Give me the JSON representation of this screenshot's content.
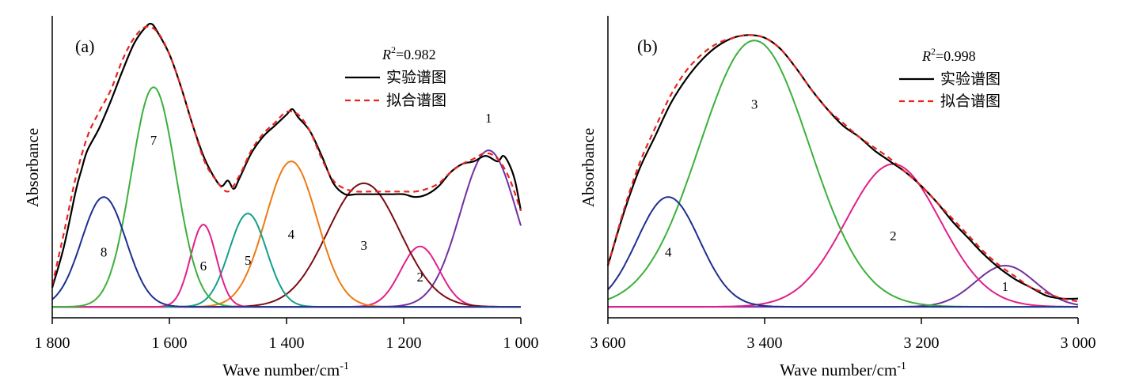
{
  "chart_data": [
    {
      "type": "line",
      "panel_label": "(a)",
      "ylabel": "Absorbance",
      "xlabel_prefix": "Wave number/cm",
      "xlabel_sup": "-1",
      "xlim": [
        1800,
        1000
      ],
      "xticks": [
        1800,
        1600,
        1400,
        1200,
        1000
      ],
      "xtick_labels": [
        "1 800",
        "1 600",
        "1 400",
        "1 200",
        "1 000"
      ],
      "ylim": [
        -0.04,
        1.06
      ],
      "r2_prefix": "R",
      "r2_sup": "2",
      "r2_value": "=0.982",
      "legend": [
        {
          "label": "实验谱图",
          "color": "#000000",
          "dash": "solid"
        },
        {
          "label": "拟合谱图",
          "color": "#e8231f",
          "dash": "dashed"
        }
      ],
      "experimental": {
        "x": [
          1800,
          1780,
          1760,
          1750,
          1740,
          1720,
          1700,
          1680,
          1660,
          1640,
          1630,
          1620,
          1600,
          1580,
          1560,
          1540,
          1520,
          1510,
          1500,
          1490,
          1480,
          1460,
          1440,
          1420,
          1400,
          1390,
          1380,
          1360,
          1340,
          1320,
          1300,
          1280,
          1260,
          1240,
          1220,
          1200,
          1180,
          1160,
          1140,
          1120,
          1100,
          1080,
          1060,
          1040,
          1030,
          1020,
          1010,
          1000
        ],
        "y": [
          0.07,
          0.22,
          0.42,
          0.5,
          0.57,
          0.65,
          0.75,
          0.86,
          0.96,
          1.02,
          1.03,
          1.0,
          0.92,
          0.8,
          0.66,
          0.54,
          0.46,
          0.44,
          0.46,
          0.43,
          0.47,
          0.56,
          0.62,
          0.66,
          0.7,
          0.72,
          0.69,
          0.64,
          0.55,
          0.45,
          0.41,
          0.41,
          0.41,
          0.41,
          0.41,
          0.41,
          0.4,
          0.41,
          0.44,
          0.49,
          0.52,
          0.53,
          0.55,
          0.53,
          0.55,
          0.52,
          0.46,
          0.35
        ]
      },
      "fitted": {
        "x": [
          1800,
          1780,
          1760,
          1740,
          1720,
          1700,
          1680,
          1660,
          1640,
          1620,
          1600,
          1580,
          1560,
          1540,
          1520,
          1500,
          1480,
          1460,
          1440,
          1420,
          1400,
          1380,
          1360,
          1340,
          1320,
          1300,
          1280,
          1260,
          1240,
          1220,
          1200,
          1180,
          1160,
          1140,
          1120,
          1100,
          1080,
          1060,
          1040,
          1020,
          1000
        ],
        "y": [
          0.08,
          0.27,
          0.47,
          0.62,
          0.71,
          0.79,
          0.9,
          0.98,
          1.02,
          1.0,
          0.92,
          0.8,
          0.66,
          0.53,
          0.46,
          0.42,
          0.48,
          0.57,
          0.63,
          0.67,
          0.71,
          0.7,
          0.64,
          0.54,
          0.46,
          0.43,
          0.42,
          0.42,
          0.42,
          0.42,
          0.42,
          0.42,
          0.43,
          0.45,
          0.49,
          0.52,
          0.54,
          0.56,
          0.54,
          0.47,
          0.35
        ]
      },
      "components": [
        {
          "label": "1",
          "center": 1055,
          "height": 0.57,
          "width": 48,
          "color": "#7030a0"
        },
        {
          "label": "2",
          "center": 1172,
          "height": 0.22,
          "width": 33,
          "color": "#e0208a"
        },
        {
          "label": "3",
          "center": 1268,
          "height": 0.45,
          "width": 62,
          "color": "#7b0c12"
        },
        {
          "label": "4",
          "center": 1392,
          "height": 0.53,
          "width": 44,
          "color": "#ec7b14"
        },
        {
          "label": "5",
          "center": 1466,
          "height": 0.34,
          "width": 32,
          "color": "#12a08a"
        },
        {
          "label": "6",
          "center": 1542,
          "height": 0.3,
          "width": 22,
          "color": "#e0208a"
        },
        {
          "label": "7",
          "center": 1627,
          "height": 0.8,
          "width": 38,
          "color": "#3cb03c"
        },
        {
          "label": "8",
          "center": 1712,
          "height": 0.4,
          "width": 38,
          "color": "#1f2f8f"
        }
      ]
    },
    {
      "type": "line",
      "panel_label": "(b)",
      "ylabel": "Absorbance",
      "xlabel_prefix": "Wave number/cm",
      "xlabel_sup": "-1",
      "xlim": [
        3600,
        3000
      ],
      "xticks": [
        3600,
        3400,
        3200,
        3000
      ],
      "xtick_labels": [
        "3 600",
        "3 400",
        "3 200",
        "3 000"
      ],
      "ylim": [
        -0.04,
        1.06
      ],
      "r2_prefix": "R",
      "r2_sup": "2",
      "r2_value": "=0.998",
      "legend": [
        {
          "label": "实验谱图",
          "color": "#000000",
          "dash": "solid"
        },
        {
          "label": "拟合谱图",
          "color": "#e8231f",
          "dash": "dashed"
        }
      ],
      "experimental": {
        "x": [
          3600,
          3580,
          3560,
          3540,
          3520,
          3500,
          3480,
          3460,
          3440,
          3420,
          3400,
          3380,
          3360,
          3340,
          3320,
          3300,
          3280,
          3260,
          3240,
          3220,
          3200,
          3180,
          3160,
          3140,
          3120,
          3100,
          3080,
          3060,
          3040,
          3020,
          3000
        ],
        "y": [
          0.15,
          0.34,
          0.5,
          0.62,
          0.74,
          0.83,
          0.9,
          0.95,
          0.98,
          0.99,
          0.98,
          0.94,
          0.87,
          0.79,
          0.72,
          0.66,
          0.62,
          0.57,
          0.53,
          0.49,
          0.44,
          0.38,
          0.31,
          0.25,
          0.19,
          0.14,
          0.1,
          0.07,
          0.04,
          0.03,
          0.03
        ]
      },
      "fitted": {
        "x": [
          3600,
          3580,
          3560,
          3540,
          3520,
          3500,
          3480,
          3460,
          3440,
          3420,
          3400,
          3380,
          3360,
          3340,
          3320,
          3300,
          3280,
          3260,
          3240,
          3220,
          3200,
          3180,
          3160,
          3140,
          3120,
          3100,
          3080,
          3060,
          3040,
          3020,
          3000
        ],
        "y": [
          0.15,
          0.35,
          0.52,
          0.65,
          0.77,
          0.86,
          0.92,
          0.96,
          0.98,
          0.99,
          0.98,
          0.94,
          0.87,
          0.79,
          0.72,
          0.67,
          0.62,
          0.58,
          0.54,
          0.49,
          0.44,
          0.38,
          0.32,
          0.26,
          0.2,
          0.15,
          0.11,
          0.07,
          0.05,
          0.03,
          0.02
        ]
      },
      "components": [
        {
          "label": "1",
          "center": 3093,
          "height": 0.15,
          "width": 38,
          "color": "#7030a0"
        },
        {
          "label": "2",
          "center": 3236,
          "height": 0.52,
          "width": 60,
          "color": "#e0208a"
        },
        {
          "label": "3",
          "center": 3413,
          "height": 0.97,
          "width": 70,
          "color": "#3cb03c"
        },
        {
          "label": "4",
          "center": 3523,
          "height": 0.4,
          "width": 40,
          "color": "#1f2f8f"
        }
      ]
    }
  ]
}
